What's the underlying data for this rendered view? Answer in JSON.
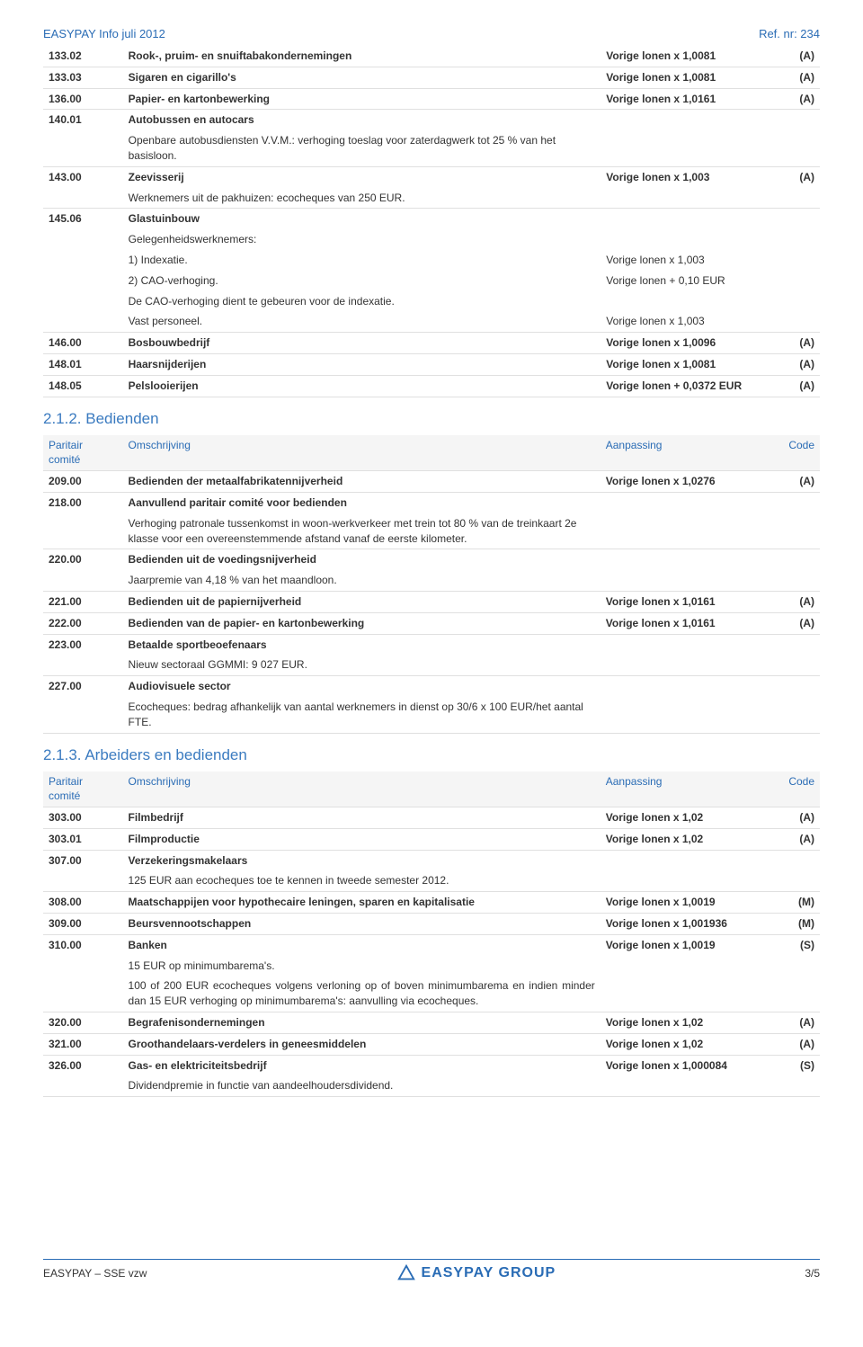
{
  "header": {
    "title": "EASYPAY Info juli 2012",
    "ref": "Ref. nr: 234"
  },
  "t1": {
    "rows": [
      {
        "a": "133.02",
        "b": "Rook-, pruim- en snuiftabakondernemingen",
        "c": "Vorige lonen x 1,0081",
        "d": "(A)",
        "bold": 1,
        "bb": 1
      },
      {
        "a": "133.03",
        "b": "Sigaren en cigarillo's",
        "c": "Vorige lonen x 1,0081",
        "d": "(A)",
        "bold": 1,
        "bb": 1
      },
      {
        "a": "136.00",
        "b": "Papier- en kartonbewerking",
        "c": "Vorige lonen x 1,0161",
        "d": "(A)",
        "bold": 1,
        "bb": 1
      },
      {
        "a": "140.01",
        "b": "Autobussen en autocars",
        "c": "",
        "d": "",
        "bold": 1
      },
      {
        "a": "",
        "b": "Openbare autobusdiensten V.V.M.: verhoging toeslag voor zaterdagwerk tot 25 % van het basisloon.",
        "c": "",
        "d": "",
        "bb": 1
      },
      {
        "a": "143.00",
        "b": "Zeevisserij",
        "c": "Vorige lonen x 1,003",
        "d": "(A)",
        "bold": 1
      },
      {
        "a": "",
        "b": "Werknemers uit de pakhuizen: ecocheques van 250 EUR.",
        "c": "",
        "d": "",
        "bb": 1
      },
      {
        "a": "145.06",
        "b": "Glastuinbouw",
        "c": "",
        "d": "",
        "bold": 1
      },
      {
        "a": "",
        "b": "Gelegenheidswerknemers:",
        "c": "",
        "d": ""
      },
      {
        "a": "",
        "b": "1)  Indexatie.",
        "c": "Vorige lonen x 1,003",
        "d": ""
      },
      {
        "a": "",
        "b": "2)  CAO-verhoging.",
        "c": "Vorige lonen + 0,10 EUR",
        "d": ""
      },
      {
        "a": "",
        "b": "De CAO-verhoging dient te gebeuren voor de indexatie.",
        "c": "",
        "d": ""
      },
      {
        "a": "",
        "b": "Vast personeel.",
        "c": "Vorige lonen x 1,003",
        "d": "",
        "bb": 1
      },
      {
        "a": "146.00",
        "b": "Bosbouwbedrijf",
        "c": "Vorige lonen x 1,0096",
        "d": "(A)",
        "bold": 1,
        "bb": 1
      },
      {
        "a": "148.01",
        "b": "Haarsnijderijen",
        "c": "Vorige lonen x 1,0081",
        "d": "(A)",
        "bold": 1,
        "bb": 1
      },
      {
        "a": "148.05",
        "b": "Pelslooierijen",
        "c": "Vorige lonen + 0,0372 EUR",
        "d": "(A)",
        "bold": 1,
        "bb": 1
      }
    ]
  },
  "s2": {
    "title": "2.1.2.   Bedienden",
    "h": [
      "Paritair comité",
      "Omschrijving",
      "Aanpassing",
      "Code"
    ],
    "rows": [
      {
        "a": "209.00",
        "b": "Bedienden der metaalfabrikatennijverheid",
        "c": "Vorige lonen x 1,0276",
        "d": "(A)",
        "bold": 1,
        "bb": 1
      },
      {
        "a": "218.00",
        "b": "Aanvullend paritair comité voor bedienden",
        "c": "",
        "d": "",
        "bold": 1
      },
      {
        "a": "",
        "b": "Verhoging patronale tussenkomst in woon-werkverkeer met trein tot 80 % van de treinkaart 2e klasse voor een overeenstemmende afstand vanaf de eerste kilometer.",
        "c": "",
        "d": "",
        "bb": 1
      },
      {
        "a": "220.00",
        "b": "Bedienden uit de voedingsnijverheid",
        "c": "",
        "d": "",
        "bold": 1
      },
      {
        "a": "",
        "b": "Jaarpremie van 4,18 % van het maandloon.",
        "c": "",
        "d": "",
        "bb": 1
      },
      {
        "a": "221.00",
        "b": "Bedienden uit de papiernijverheid",
        "c": "Vorige lonen x 1,0161",
        "d": "(A)",
        "bold": 1,
        "bb": 1
      },
      {
        "a": "222.00",
        "b": "Bedienden van de papier- en kartonbewerking",
        "c": "Vorige lonen x 1,0161",
        "d": "(A)",
        "bold": 1,
        "bb": 1
      },
      {
        "a": "223.00",
        "b": "Betaalde sportbeoefenaars",
        "c": "",
        "d": "",
        "bold": 1
      },
      {
        "a": "",
        "b": "Nieuw sectoraal GGMMI: 9 027 EUR.",
        "c": "",
        "d": "",
        "bb": 1
      },
      {
        "a": "227.00",
        "b": "Audiovisuele sector",
        "c": "",
        "d": "",
        "bold": 1
      },
      {
        "a": "",
        "b": "Ecocheques: bedrag afhankelijk van aantal werknemers in dienst op 30/6 x 100 EUR/het aantal FTE.",
        "c": "",
        "d": "",
        "bb": 1
      }
    ]
  },
  "s3": {
    "title": "2.1.3.   Arbeiders en bedienden",
    "h": [
      "Paritair comité",
      "Omschrijving",
      "Aanpassing",
      "Code"
    ],
    "rows": [
      {
        "a": "303.00",
        "b": "Filmbedrijf",
        "c": "Vorige lonen x 1,02",
        "d": "(A)",
        "bold": 1,
        "bb": 1
      },
      {
        "a": "303.01",
        "b": "Filmproductie",
        "c": "Vorige lonen x 1,02",
        "d": "(A)",
        "bold": 1,
        "bb": 1
      },
      {
        "a": "307.00",
        "b": "Verzekeringsmakelaars",
        "c": "",
        "d": "",
        "bold": 1
      },
      {
        "a": "",
        "b": "125 EUR aan ecocheques toe te kennen in tweede semester 2012.",
        "c": "",
        "d": "",
        "bb": 1
      },
      {
        "a": "308.00",
        "b": "Maatschappijen voor hypothecaire leningen, sparen en kapitalisatie",
        "c": "Vorige lonen x 1,0019",
        "d": "(M)",
        "bold": 1,
        "bb": 1
      },
      {
        "a": "309.00",
        "b": "Beursvennootschappen",
        "c": "Vorige lonen x 1,001936",
        "d": "(M)",
        "bold": 1,
        "bb": 1
      },
      {
        "a": "310.00",
        "b": "Banken",
        "c": "Vorige lonen x 1,0019",
        "d": "(S)",
        "bold": 1
      },
      {
        "a": "",
        "b": "15 EUR op minimumbarema's.",
        "c": "",
        "d": ""
      },
      {
        "a": "",
        "b": "100 of 200 EUR ecocheques volgens verloning op of boven minimumbarema en indien minder dan 15 EUR verhoging op minimumbarema's: aanvulling via ecocheques.",
        "c": "",
        "d": "",
        "bb": 1,
        "just": 1
      },
      {
        "a": "320.00",
        "b": "Begrafenisondernemingen",
        "c": "Vorige lonen x 1,02",
        "d": "(A)",
        "bold": 1,
        "bb": 1
      },
      {
        "a": "321.00",
        "b": "Groothandelaars-verdelers in geneesmiddelen",
        "c": "Vorige lonen x 1,02",
        "d": "(A)",
        "bold": 1,
        "bb": 1
      },
      {
        "a": "326.00",
        "b": "Gas- en elektriciteitsbedrijf",
        "c": "Vorige lonen x 1,000084",
        "d": "(S)",
        "bold": 1
      },
      {
        "a": "",
        "b": "Dividendpremie in functie van aandeelhoudersdividend.",
        "c": "",
        "d": "",
        "bb": 1
      }
    ]
  },
  "footer": {
    "left": "EASYPAY – SSE vzw",
    "logo": "EASYPAY GROUP",
    "right": "3/5"
  },
  "colors": {
    "primary": "#2a6cb5",
    "border": "#e0e0e0",
    "headbg": "#f5f5f5"
  }
}
